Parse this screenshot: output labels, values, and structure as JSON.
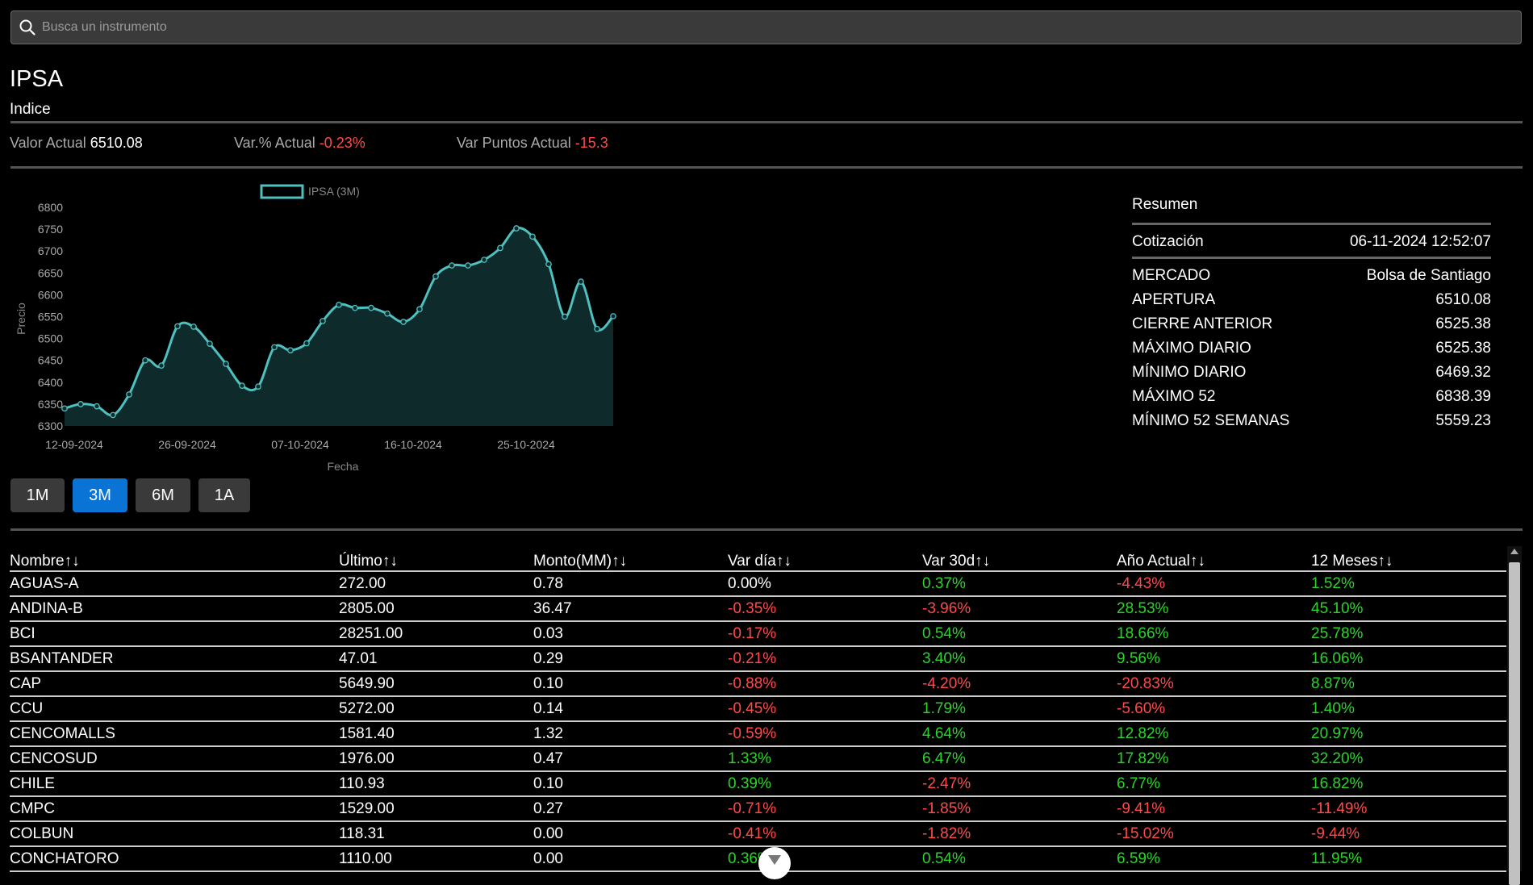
{
  "search": {
    "placeholder": "Busca un instrumento",
    "value": "",
    "icon": "search-icon"
  },
  "instrument": {
    "name": "IPSA",
    "type": "Indice"
  },
  "stats": [
    {
      "label": "Valor Actual",
      "value": "6510.08",
      "color": "#ffffff"
    },
    {
      "label": "Var.% Actual",
      "value": "-0.23%",
      "color": "#ff4a4a"
    },
    {
      "label": "Var Puntos Actual",
      "value": "-15.3",
      "color": "#ff4a4a"
    }
  ],
  "chart_data": {
    "type": "area",
    "legend": "IPSA (3M)",
    "xlabel": "Fecha",
    "ylabel": "Precio",
    "ylim": [
      6300,
      6800
    ],
    "y_ticks": [
      6800,
      6750,
      6700,
      6650,
      6600,
      6550,
      6500,
      6450,
      6400,
      6350,
      6300
    ],
    "x_ticks": [
      "12-09-2024",
      "26-09-2024",
      "07-10-2024",
      "16-10-2024",
      "25-10-2024"
    ],
    "line_color": "#4fc0c0",
    "fill_color": "#0f2a2a",
    "values": [
      6340,
      6350,
      6345,
      6325,
      6372,
      6450,
      6438,
      6528,
      6527,
      6488,
      6442,
      6392,
      6390,
      6480,
      6473,
      6489,
      6540,
      6577,
      6570,
      6570,
      6557,
      6538,
      6567,
      6642,
      6667,
      6667,
      6680,
      6707,
      6752,
      6733,
      6670,
      6550,
      6630,
      6522,
      6551
    ]
  },
  "range_buttons": [
    {
      "label": "1M",
      "active": false
    },
    {
      "label": "3M",
      "active": true
    },
    {
      "label": "6M",
      "active": false
    },
    {
      "label": "1A",
      "active": false
    }
  ],
  "summary": {
    "title": "Resumen",
    "cotizacion": {
      "label": "Cotización",
      "value": "06-11-2024 12:52:07"
    },
    "rows": [
      {
        "label": "MERCADO",
        "value": "Bolsa de Santiago"
      },
      {
        "label": "APERTURA",
        "value": "6510.08"
      },
      {
        "label": "CIERRE ANTERIOR",
        "value": "6525.38"
      },
      {
        "label": "MÁXIMO DIARIO",
        "value": "6525.38"
      },
      {
        "label": "MÍNIMO DIARIO",
        "value": "6469.32"
      },
      {
        "label": "MÁXIMO 52",
        "value": "6838.39"
      },
      {
        "label": "MÍNIMO 52 SEMANAS",
        "value": "5559.23"
      }
    ]
  },
  "table": {
    "headers": [
      "Nombre↑↓",
      "Último↑↓",
      "Monto(MM)↑↓",
      "Var día↑↓",
      "Var 30d↑↓",
      "Año Actual↑↓",
      "12 Meses↑↓"
    ],
    "rows": [
      [
        "AGUAS-A",
        "272.00",
        "0.78",
        "0.00%",
        "0.37%",
        "-4.43%",
        "1.52%"
      ],
      [
        "ANDINA-B",
        "2805.00",
        "36.47",
        "-0.35%",
        "-3.96%",
        "28.53%",
        "45.10%"
      ],
      [
        "BCI",
        "28251.00",
        "0.03",
        "-0.17%",
        "0.54%",
        "18.66%",
        "25.78%"
      ],
      [
        "BSANTANDER",
        "47.01",
        "0.29",
        "-0.21%",
        "3.40%",
        "9.56%",
        "16.06%"
      ],
      [
        "CAP",
        "5649.90",
        "0.10",
        "-0.88%",
        "-4.20%",
        "-20.83%",
        "8.87%"
      ],
      [
        "CCU",
        "5272.00",
        "0.14",
        "-0.45%",
        "1.79%",
        "-5.60%",
        "1.40%"
      ],
      [
        "CENCOMALLS",
        "1581.40",
        "1.32",
        "-0.59%",
        "4.64%",
        "12.82%",
        "20.97%"
      ],
      [
        "CENCOSUD",
        "1976.00",
        "0.47",
        "1.33%",
        "6.47%",
        "17.82%",
        "32.20%"
      ],
      [
        "CHILE",
        "110.93",
        "0.10",
        "0.39%",
        "-2.47%",
        "6.77%",
        "16.82%"
      ],
      [
        "CMPC",
        "1529.00",
        "0.27",
        "-0.71%",
        "-1.85%",
        "-9.41%",
        "-11.49%"
      ],
      [
        "COLBUN",
        "118.31",
        "0.00",
        "-0.41%",
        "-1.82%",
        "-15.02%",
        "-9.44%"
      ],
      [
        "CONCHATORO",
        "1110.00",
        "0.00",
        "0.36%",
        "0.54%",
        "6.59%",
        "11.95%"
      ]
    ]
  },
  "colors": {
    "positive": "#2bd42b",
    "negative": "#ff4a4a",
    "accent": "#0a74d6"
  }
}
